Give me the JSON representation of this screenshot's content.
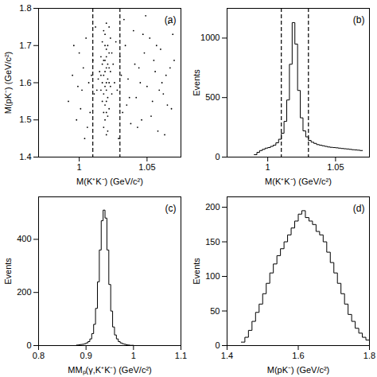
{
  "chart_data": [
    {
      "type": "scatter",
      "annotation": "(a)",
      "x_label": "M(K⁺K⁻) (GeV/c²)",
      "y_label": "M(pK⁻) (GeV/c²)",
      "x": [
        1.018,
        1.02,
        1.021,
        1.019,
        1.017,
        1.022,
        1.02,
        1.016,
        1.023,
        1.019,
        1.021,
        1.018,
        1.02,
        1.022,
        1.017,
        1.015,
        1.024,
        1.019,
        1.021,
        1.018,
        1.02,
        1.016,
        1.023,
        1.019,
        1.022,
        1.02,
        1.018,
        1.021,
        1.014,
        1.025,
        1.02,
        1.019,
        1.017,
        1.022,
        1.021,
        1.018,
        1.02,
        1.016,
        1.023,
        1.019,
        1.026,
        1.013,
        1.02,
        1.021,
        1.018,
        1.022,
        1.017,
        1.024,
        1.019,
        1.02,
        0.992,
        0.995,
        0.998,
        1.0,
        1.002,
        1.004,
        1.005,
        1.007,
        1.008,
        1.01,
        1.011,
        1.012,
        0.996,
        1.003,
        1.006,
        1.009,
        0.999,
        1.001,
        1.028,
        1.03,
        1.032,
        1.034,
        1.036,
        1.038,
        1.04,
        1.042,
        1.044,
        1.046,
        1.048,
        1.05,
        1.052,
        1.054,
        1.056,
        1.058,
        1.06,
        1.062,
        1.064,
        1.066,
        1.068,
        1.07,
        1.029,
        1.033,
        1.037,
        1.041,
        1.045,
        1.049,
        1.053,
        1.057,
        1.061,
        1.065,
        1.069,
        1.027,
        1.031,
        1.035,
        1.043,
        1.047,
        1.055,
        1.059,
        1.063,
        1.067
      ],
      "y": [
        1.62,
        1.58,
        1.65,
        1.7,
        1.55,
        1.6,
        1.52,
        1.67,
        1.72,
        1.5,
        1.56,
        1.74,
        1.64,
        1.68,
        1.6,
        1.63,
        1.57,
        1.59,
        1.61,
        1.66,
        1.69,
        1.58,
        1.63,
        1.54,
        1.53,
        1.76,
        1.48,
        1.47,
        1.61,
        1.65,
        1.6,
        1.63,
        1.71,
        1.75,
        1.51,
        1.57,
        1.67,
        1.62,
        1.59,
        1.66,
        1.6,
        1.58,
        1.55,
        1.7,
        1.52,
        1.64,
        1.65,
        1.68,
        1.73,
        1.46,
        1.55,
        1.62,
        1.5,
        1.68,
        1.58,
        1.45,
        1.72,
        1.6,
        1.52,
        1.66,
        1.57,
        1.75,
        1.7,
        1.64,
        1.48,
        1.62,
        1.59,
        1.53,
        1.58,
        1.67,
        1.52,
        1.7,
        1.61,
        1.49,
        1.74,
        1.56,
        1.64,
        1.5,
        1.68,
        1.59,
        1.72,
        1.55,
        1.63,
        1.47,
        1.69,
        1.57,
        1.62,
        1.76,
        1.53,
        1.66,
        1.45,
        1.77,
        1.56,
        1.65,
        1.6,
        1.78,
        1.51,
        1.7,
        1.6,
        1.54,
        1.73,
        1.71,
        1.62,
        1.54,
        1.48,
        1.73,
        1.66,
        1.58,
        1.46,
        1.64
      ],
      "color": "#000000",
      "cut_lines": {
        "values": [
          1.01,
          1.03
        ],
        "line_style": "dashed"
      },
      "xlim": [
        0.97,
        1.075
      ],
      "xticks": [
        1,
        1.05
      ],
      "ylim": [
        1.4,
        1.8
      ],
      "yticks": [
        1.4,
        1.5,
        1.6,
        1.7,
        1.8
      ]
    },
    {
      "type": "histogram",
      "annotation": "(b)",
      "x_label": "M(K⁺K⁻) (GeV/c²)",
      "y_label": "Events",
      "bins": [
        0.99,
        0.992,
        0.994,
        0.996,
        0.998,
        1.0,
        1.002,
        1.004,
        1.006,
        1.008,
        1.01,
        1.012,
        1.014,
        1.016,
        1.018,
        1.02,
        1.022,
        1.024,
        1.026,
        1.028,
        1.03,
        1.032,
        1.034,
        1.036,
        1.038,
        1.04,
        1.042,
        1.044,
        1.046,
        1.048,
        1.05,
        1.052,
        1.054,
        1.056,
        1.058,
        1.06,
        1.062,
        1.064,
        1.066,
        1.068,
        1.07
      ],
      "values": [
        20,
        40,
        55,
        65,
        75,
        80,
        90,
        100,
        120,
        150,
        200,
        300,
        480,
        780,
        1130,
        950,
        560,
        330,
        220,
        170,
        140,
        125,
        115,
        105,
        100,
        95,
        90,
        85,
        82,
        80,
        78,
        75,
        72,
        70,
        68,
        65,
        62,
        60,
        58,
        55
      ],
      "color": "#000000",
      "cut_lines": {
        "values": [
          1.01,
          1.03
        ],
        "line_style": "dashed"
      },
      "xlim": [
        0.97,
        1.075
      ],
      "xticks": [
        1,
        1.05
      ],
      "ylim": [
        0,
        1250
      ],
      "yticks": [
        0,
        500,
        1000
      ]
    },
    {
      "type": "histogram",
      "annotation": "(c)",
      "x_label": "MMₚ(γ,K⁺K⁻) (GeV/c²)",
      "y_label": "Events",
      "bins": [
        0.88,
        0.884,
        0.888,
        0.892,
        0.896,
        0.9,
        0.904,
        0.908,
        0.912,
        0.916,
        0.92,
        0.924,
        0.928,
        0.932,
        0.936,
        0.94,
        0.944,
        0.948,
        0.952,
        0.956,
        0.96,
        0.964,
        0.968,
        0.972,
        0.976,
        0.98,
        0.984,
        0.988,
        0.992,
        0.996,
        1.0
      ],
      "values": [
        2,
        3,
        4,
        5,
        7,
        10,
        15,
        25,
        45,
        80,
        140,
        240,
        360,
        470,
        510,
        480,
        360,
        230,
        130,
        70,
        40,
        25,
        15,
        10,
        7,
        5,
        3,
        2,
        1,
        1
      ],
      "color": "#000000",
      "xlim": [
        0.8,
        1.1
      ],
      "xticks": [
        0.8,
        0.9,
        1,
        1.1
      ],
      "ylim": [
        0,
        560
      ],
      "yticks": [
        0,
        200,
        400
      ]
    },
    {
      "type": "histogram",
      "annotation": "(d)",
      "x_label": "M(pK⁻) (GeV/c²)",
      "y_label": "Events",
      "bins": [
        1.44,
        1.45,
        1.46,
        1.47,
        1.48,
        1.49,
        1.5,
        1.51,
        1.52,
        1.53,
        1.54,
        1.55,
        1.56,
        1.57,
        1.58,
        1.59,
        1.6,
        1.61,
        1.62,
        1.63,
        1.64,
        1.65,
        1.66,
        1.67,
        1.68,
        1.69,
        1.7,
        1.71,
        1.72,
        1.73,
        1.74,
        1.75,
        1.76,
        1.77,
        1.78,
        1.79,
        1.8
      ],
      "values": [
        5,
        12,
        22,
        35,
        48,
        60,
        75,
        90,
        105,
        118,
        130,
        140,
        150,
        160,
        170,
        180,
        190,
        195,
        185,
        180,
        175,
        165,
        160,
        150,
        135,
        120,
        105,
        90,
        75,
        60,
        45,
        35,
        25,
        18,
        12,
        8
      ],
      "color": "#000000",
      "xlim": [
        1.4,
        1.8
      ],
      "xticks": [
        1.4,
        1.6,
        1.8
      ],
      "ylim": [
        0,
        215
      ],
      "yticks": [
        0,
        50,
        100,
        150,
        200
      ]
    }
  ]
}
